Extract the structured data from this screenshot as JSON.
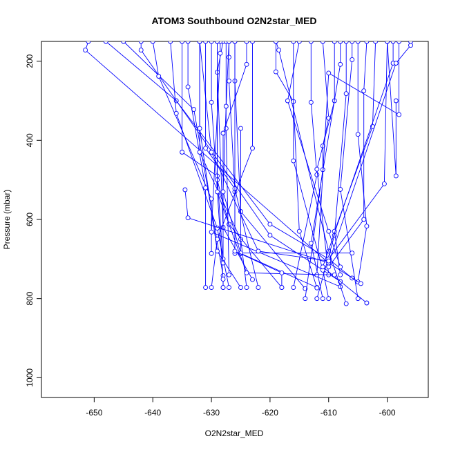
{
  "chart_data": {
    "type": "line",
    "title": "ATOM3 Southbound O2N2star_MED",
    "xlabel": "O2N2star_MED",
    "ylabel": "Pressure (mbar)",
    "xlim": [
      -659,
      -593
    ],
    "ylim": [
      1050,
      150
    ],
    "y_inverted": true,
    "grid": false,
    "xticks": [
      -650,
      -640,
      -630,
      -620,
      -610,
      -600
    ],
    "yticks": [
      200,
      400,
      600,
      800,
      1000
    ],
    "series_color": "#0000ff",
    "marker": "open-circle",
    "series": [
      {
        "points": [
          [
            -651,
            150
          ],
          [
            -651.5,
            172
          ],
          [
            -610,
            710
          ]
        ]
      },
      {
        "points": [
          [
            -648,
            150
          ],
          [
            -636,
            300
          ],
          [
            -620,
            612
          ],
          [
            -610,
            700
          ]
        ]
      },
      {
        "points": [
          [
            -645,
            150
          ],
          [
            -633,
            322
          ],
          [
            -628,
            742
          ],
          [
            -628,
            772
          ]
        ]
      },
      {
        "points": [
          [
            -642,
            150
          ],
          [
            -642,
            172
          ],
          [
            -620,
            640
          ],
          [
            -608,
            757
          ]
        ]
      },
      {
        "points": [
          [
            -640,
            150
          ],
          [
            -639,
            238
          ],
          [
            -630,
            548
          ],
          [
            -630,
            686
          ]
        ]
      },
      {
        "points": [
          [
            -637,
            150
          ],
          [
            -636,
            332
          ],
          [
            -629,
            622
          ],
          [
            -627,
            772
          ]
        ]
      },
      {
        "points": [
          [
            -634,
            150
          ],
          [
            -634,
            265
          ],
          [
            -631,
            520
          ],
          [
            -631,
            772
          ]
        ]
      },
      {
        "points": [
          [
            -632,
            150
          ],
          [
            -632,
            430
          ],
          [
            -625,
            650
          ],
          [
            -624,
            772
          ]
        ]
      },
      {
        "points": [
          [
            -630,
            150
          ],
          [
            -630,
            304
          ],
          [
            -628,
            751
          ],
          [
            -628,
            772
          ]
        ]
      },
      {
        "points": [
          [
            -628,
            150
          ],
          [
            -629,
            228
          ],
          [
            -628,
            620
          ],
          [
            -623,
            752
          ]
        ]
      },
      {
        "points": [
          [
            -627,
            150
          ],
          [
            -627,
            190
          ],
          [
            -627,
            250
          ],
          [
            -626,
            530
          ],
          [
            -626,
            686
          ]
        ]
      },
      {
        "points": [
          [
            -626,
            150
          ],
          [
            -626,
            250
          ],
          [
            -625,
            580
          ],
          [
            -614,
            775
          ]
        ]
      },
      {
        "points": [
          [
            -624,
            150
          ],
          [
            -624,
            208
          ],
          [
            -628,
            382
          ],
          [
            -628,
            700
          ]
        ]
      },
      {
        "points": [
          [
            -623,
            150
          ],
          [
            -623,
            420
          ],
          [
            -629,
            650
          ],
          [
            -630,
            772
          ]
        ]
      },
      {
        "points": [
          [
            -635,
            150
          ],
          [
            -635,
            430
          ],
          [
            -629,
            490
          ],
          [
            -628,
            710
          ]
        ]
      },
      {
        "points": [
          [
            -634.5,
            525
          ],
          [
            -634,
            596
          ],
          [
            -610,
            710
          ]
        ]
      },
      {
        "points": [
          [
            -632,
            150
          ],
          [
            -632,
            370
          ],
          [
            -629,
            680
          ],
          [
            -625,
            772
          ]
        ]
      },
      {
        "points": [
          [
            -631,
            150
          ],
          [
            -631,
            420
          ],
          [
            -626,
            522
          ],
          [
            -622,
            772
          ]
        ]
      },
      {
        "points": [
          [
            -629,
            150
          ],
          [
            -629,
            500
          ],
          [
            -627,
            612
          ],
          [
            -618,
            772
          ]
        ]
      },
      {
        "points": [
          [
            -628.5,
            150
          ],
          [
            -628.5,
            180
          ],
          [
            -630,
            632
          ],
          [
            -608,
            770
          ]
        ]
      },
      {
        "points": [
          [
            -627.5,
            150
          ],
          [
            -627.5,
            370
          ],
          [
            -627,
            740
          ]
        ]
      },
      {
        "points": [
          [
            -627,
            150
          ],
          [
            -627.5,
            314
          ],
          [
            -628,
            530
          ],
          [
            -625,
            686
          ],
          [
            -612,
            772
          ]
        ]
      },
      {
        "points": [
          [
            -619,
            150
          ],
          [
            -618.5,
            172
          ],
          [
            -610,
            680
          ],
          [
            -607,
            813
          ]
        ]
      },
      {
        "points": [
          [
            -619,
            150
          ],
          [
            -619,
            227
          ],
          [
            -616,
            302
          ],
          [
            -615,
            630
          ],
          [
            -612,
            773
          ]
        ]
      },
      {
        "points": [
          [
            -616,
            150
          ],
          [
            -616,
            452
          ],
          [
            -611,
            728
          ],
          [
            -610,
            800
          ]
        ]
      },
      {
        "points": [
          [
            -613,
            150
          ],
          [
            -613,
            304
          ],
          [
            -612,
            487
          ],
          [
            -616,
            772
          ]
        ]
      },
      {
        "points": [
          [
            -611,
            150
          ],
          [
            -610,
            344
          ],
          [
            -611,
            414
          ],
          [
            -611,
            474
          ],
          [
            -614,
            800
          ]
        ]
      },
      {
        "points": [
          [
            -609,
            150
          ],
          [
            -609,
            300
          ],
          [
            -612,
            473
          ],
          [
            -610,
            740
          ]
        ]
      },
      {
        "points": [
          [
            -608,
            150
          ],
          [
            -608,
            208
          ],
          [
            -613,
            660
          ],
          [
            -611,
            800
          ]
        ]
      },
      {
        "points": [
          [
            -607,
            150
          ],
          [
            -607,
            282
          ],
          [
            -609,
            640
          ],
          [
            -612,
            800
          ]
        ]
      },
      {
        "points": [
          [
            -606,
            150
          ],
          [
            -606,
            196
          ],
          [
            -608,
            524
          ],
          [
            -605,
            800
          ]
        ]
      },
      {
        "points": [
          [
            -605,
            150
          ],
          [
            -605,
            385
          ],
          [
            -603.5,
            617
          ],
          [
            -605,
            758
          ]
        ]
      },
      {
        "points": [
          [
            -603.5,
            150
          ],
          [
            -604,
            275
          ],
          [
            -604,
            600
          ],
          [
            -610,
            720
          ]
        ]
      },
      {
        "points": [
          [
            -602,
            150
          ],
          [
            -602.5,
            365
          ],
          [
            -609,
            630
          ],
          [
            -608,
            740
          ]
        ]
      },
      {
        "points": [
          [
            -600,
            150
          ],
          [
            -600.5,
            510
          ],
          [
            -610,
            700
          ],
          [
            -606,
            748
          ]
        ]
      },
      {
        "points": [
          [
            -599,
            150
          ],
          [
            -599,
            205
          ],
          [
            -611,
            720
          ],
          [
            -603.5,
            811
          ]
        ]
      },
      {
        "points": [
          [
            -596,
            150
          ],
          [
            -596,
            160
          ],
          [
            -598.5,
            205
          ],
          [
            -610,
            710
          ],
          [
            -604.5,
            762
          ]
        ]
      },
      {
        "points": [
          [
            -598,
            150
          ],
          [
            -598,
            335
          ],
          [
            -610,
            230
          ],
          [
            -612,
            740
          ]
        ]
      },
      {
        "points": [
          [
            -600,
            150
          ],
          [
            -598.5,
            490
          ],
          [
            -598.5,
            300
          ]
        ]
      },
      {
        "points": [
          [
            -625,
            370
          ],
          [
            -625,
            685
          ],
          [
            -606,
            685
          ]
        ]
      },
      {
        "points": [
          [
            -629,
            150
          ],
          [
            -629,
            530
          ],
          [
            -624,
            735
          ],
          [
            -609,
            740
          ]
        ]
      },
      {
        "points": [
          [
            -626,
            150
          ],
          [
            -626,
            680
          ],
          [
            -618,
            735
          ],
          [
            -618,
            772
          ]
        ]
      },
      {
        "points": [
          [
            -632,
            150
          ],
          [
            -630,
            430
          ],
          [
            -622,
            680
          ],
          [
            -610,
            705
          ]
        ]
      },
      {
        "points": [
          [
            -615,
            150
          ],
          [
            -617,
            300
          ],
          [
            -610,
            630
          ],
          [
            -608,
            720
          ]
        ]
      }
    ]
  }
}
